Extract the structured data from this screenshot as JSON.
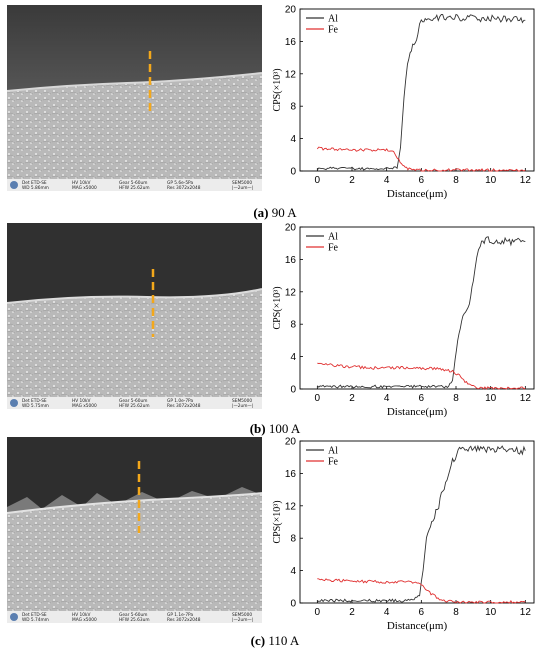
{
  "panels": [
    {
      "caption_letter": "(a)",
      "caption_rest": " 90 A",
      "sem_info": {
        "row1": [
          "Det ETD-SE",
          "HV 10kV",
          "Gear 5-60um",
          "GP 5.6e-5Pa",
          "SEM5000"
        ],
        "row2": [
          "WD 5.86mm",
          "MAG x5000",
          "HFW 25.62um",
          "Res 3072x2048",
          "|—2um—|"
        ]
      }
    },
    {
      "caption_letter": "(b)",
      "caption_rest": " 100 A",
      "sem_info": {
        "row1": [
          "Det ETD-SE",
          "HV 10kV",
          "Gear 5-60um",
          "GP 1.0e-7Pa",
          "SEM5000"
        ],
        "row2": [
          "WD 5.75mm",
          "MAG x5000",
          "HFW 25.62um",
          "Res 3072x2048",
          "|—2um—|"
        ]
      }
    },
    {
      "caption_letter": "(c)",
      "caption_rest": " 110 A",
      "sem_info": {
        "row1": [
          "Det ETD-SE",
          "HV 10kV",
          "Gear 5-60um",
          "GP 1.1e-7Pa",
          "SEM5000"
        ],
        "row2": [
          "WD 5.74mm",
          "MAG x5000",
          "HFW 25.63um",
          "Res 3072x2048",
          "|—2um—|"
        ]
      }
    }
  ],
  "chart_data": [
    {
      "type": "line",
      "xlabel": "Distance(μm)",
      "ylabel": "CPS(×10³)",
      "xlim": [
        -1,
        12.5
      ],
      "ylim": [
        0,
        20
      ],
      "xticks": [
        0,
        2,
        4,
        6,
        8,
        10,
        12
      ],
      "yticks": [
        0,
        4,
        8,
        12,
        16,
        20
      ],
      "legend_position": "top-left",
      "series": [
        {
          "name": "Al",
          "color": "#333333",
          "x": [
            0,
            4,
            4.6,
            4.8,
            5.0,
            5.2,
            5.5,
            5.8,
            6.0,
            6.3,
            8,
            10,
            12
          ],
          "y": [
            0.3,
            0.3,
            0.5,
            3,
            9,
            13,
            15.5,
            17,
            18.5,
            19,
            19,
            18.8,
            18.6
          ]
        },
        {
          "name": "Fe",
          "color": "#e03030",
          "x": [
            0,
            2,
            4,
            4.4,
            4.7,
            5.0,
            5.3,
            6,
            8,
            10,
            12
          ],
          "y": [
            2.8,
            2.6,
            2.6,
            2.4,
            1.4,
            0.5,
            0.2,
            0.1,
            0.1,
            0.1,
            0.1
          ]
        }
      ]
    },
    {
      "type": "line",
      "xlabel": "Distance(μm)",
      "ylabel": "CPS(×10³)",
      "xlim": [
        -1,
        12.5
      ],
      "ylim": [
        0,
        20
      ],
      "xticks": [
        0,
        2,
        4,
        6,
        8,
        10,
        12
      ],
      "yticks": [
        0,
        4,
        8,
        12,
        16,
        20
      ],
      "legend_position": "top-left",
      "series": [
        {
          "name": "Al",
          "color": "#333333",
          "x": [
            0,
            7.5,
            7.8,
            8.1,
            8.4,
            8.7,
            9.0,
            9.2,
            9.4,
            9.7,
            10.5,
            12
          ],
          "y": [
            0.3,
            0.3,
            1,
            6,
            9,
            10,
            13,
            16,
            18,
            18.5,
            18.3,
            18.2
          ]
        },
        {
          "name": "Fe",
          "color": "#e03030",
          "x": [
            0,
            1,
            3,
            5,
            7,
            7.8,
            8.2,
            8.6,
            9.0,
            9.5,
            12
          ],
          "y": [
            3.1,
            2.9,
            2.6,
            2.6,
            2.5,
            2.2,
            1.6,
            0.8,
            0.3,
            0.1,
            0.1
          ]
        }
      ]
    },
    {
      "type": "line",
      "xlabel": "Distance(μm)",
      "ylabel": "CPS(×10³)",
      "xlim": [
        -1,
        12.5
      ],
      "ylim": [
        0,
        20
      ],
      "xticks": [
        0,
        2,
        4,
        6,
        8,
        10,
        12
      ],
      "yticks": [
        0,
        4,
        8,
        12,
        16,
        20
      ],
      "legend_position": "top-left",
      "series": [
        {
          "name": "Al",
          "color": "#333333",
          "x": [
            0,
            5.5,
            5.9,
            6.1,
            6.3,
            6.6,
            7.0,
            7.4,
            7.8,
            8.2,
            10,
            12
          ],
          "y": [
            0.3,
            0.3,
            1,
            4,
            8,
            10,
            12,
            15,
            17.5,
            19,
            19,
            18.8
          ]
        },
        {
          "name": "Fe",
          "color": "#e03030",
          "x": [
            0,
            2,
            4,
            5.5,
            6.0,
            6.4,
            6.8,
            7.3,
            8,
            10,
            12
          ],
          "y": [
            2.9,
            2.7,
            2.6,
            2.6,
            2.2,
            1.4,
            0.8,
            0.3,
            0.1,
            0.1,
            0.1
          ]
        }
      ]
    }
  ]
}
